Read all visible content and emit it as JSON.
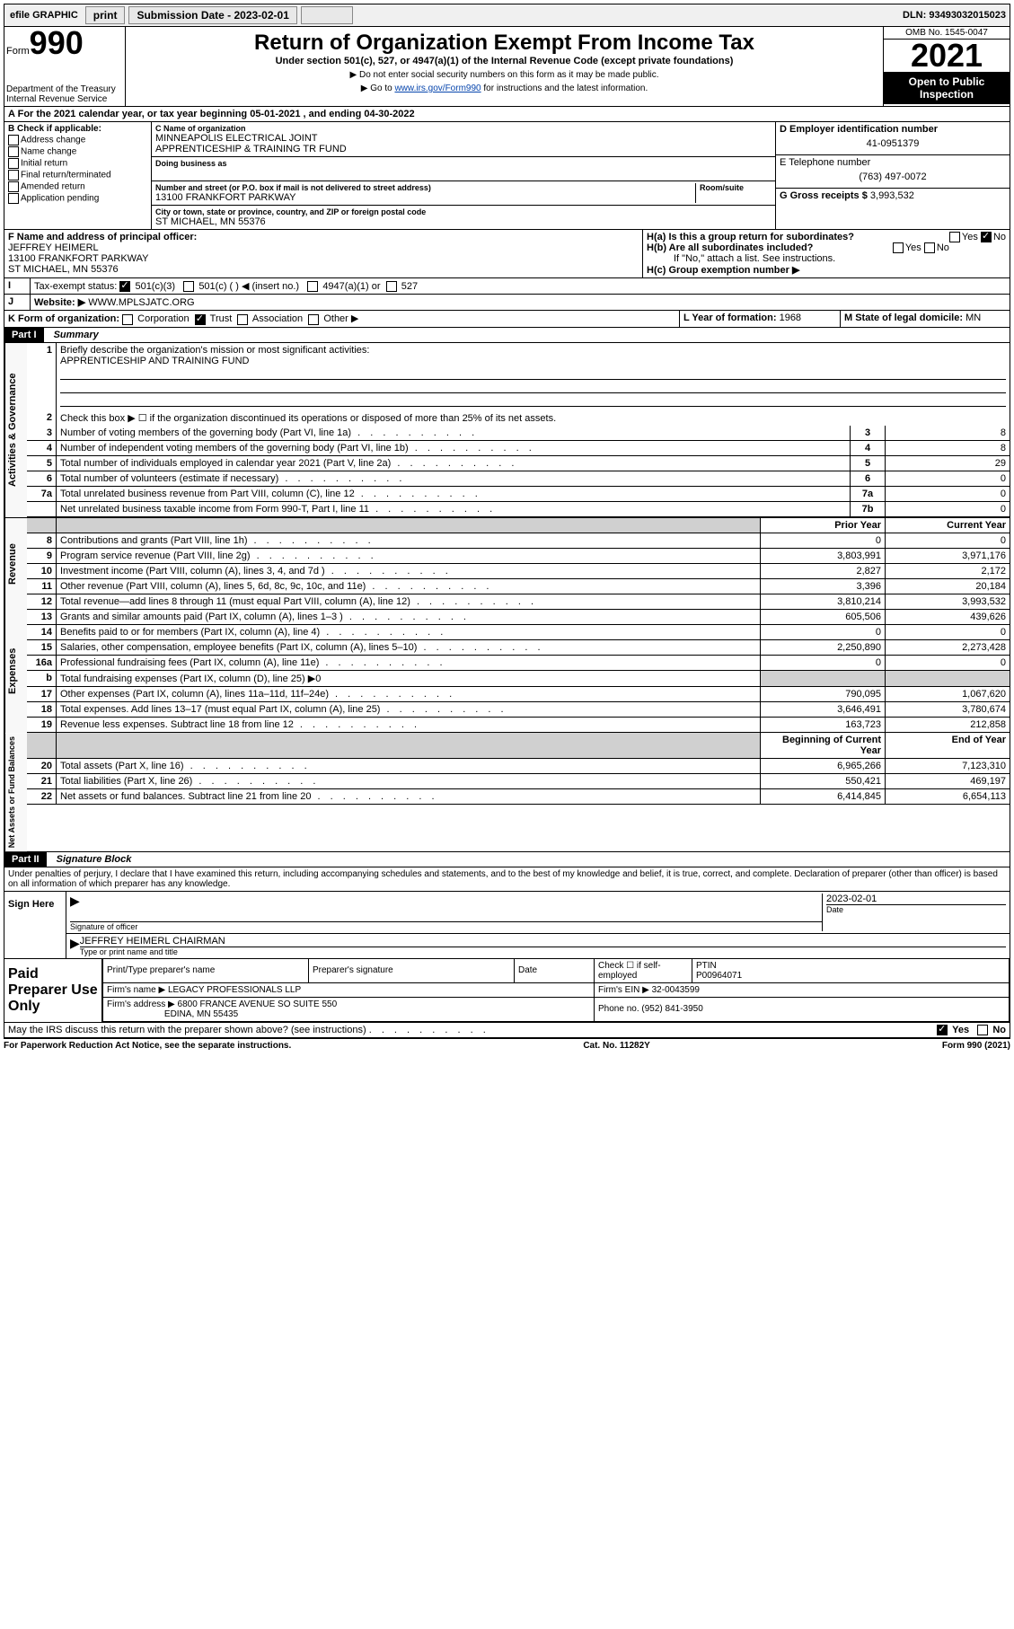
{
  "topbar": {
    "efile": "efile GRAPHIC",
    "print": "print",
    "sub_label": "Submission Date - 2023-02-01",
    "dln": "DLN: 93493032015023"
  },
  "header": {
    "form_word": "Form",
    "form_num": "990",
    "dept": "Department of the Treasury",
    "irs": "Internal Revenue Service",
    "title": "Return of Organization Exempt From Income Tax",
    "subtitle": "Under section 501(c), 527, or 4947(a)(1) of the Internal Revenue Code (except private foundations)",
    "warn1": "▶ Do not enter social security numbers on this form as it may be made public.",
    "warn2_pre": "▶ Go to ",
    "warn2_link": "www.irs.gov/Form990",
    "warn2_post": " for instructions and the latest information.",
    "omb": "OMB No. 1545-0047",
    "year": "2021",
    "inspection": "Open to Public Inspection"
  },
  "periodA": "For the 2021 calendar year, or tax year beginning 05-01-2021   , and ending 04-30-2022",
  "blockB": {
    "title": "B Check if applicable:",
    "items": [
      "Address change",
      "Name change",
      "Initial return",
      "Final return/terminated",
      "Amended return",
      "Application pending"
    ]
  },
  "blockC": {
    "name_label": "C Name of organization",
    "name1": "MINNEAPOLIS ELECTRICAL JOINT",
    "name2": "APPRENTICESHIP & TRAINING TR FUND",
    "dba": "Doing business as",
    "addr_label": "Number and street (or P.O. box if mail is not delivered to street address)",
    "room": "Room/suite",
    "street": "13100 FRANKFORT PARKWAY",
    "city_label": "City or town, state or province, country, and ZIP or foreign postal code",
    "city": "ST MICHAEL, MN  55376"
  },
  "blockD": {
    "label": "D Employer identification number",
    "val": "41-0951379"
  },
  "blockE": {
    "label": "E Telephone number",
    "val": "(763) 497-0072"
  },
  "blockG": {
    "label": "G Gross receipts $",
    "val": "3,993,532"
  },
  "blockF": {
    "label": "F Name and address of principal officer:",
    "name": "JEFFREY HEIMERL",
    "street": "13100 FRANKFORT PARKWAY",
    "city": "ST MICHAEL, MN  55376"
  },
  "blockH": {
    "ha": "H(a)  Is this a group return for subordinates?",
    "yes": "Yes",
    "no": "No",
    "hb": "H(b)  Are all subordinates included?",
    "hb_note": "If \"No,\" attach a list. See instructions.",
    "hc": "H(c)  Group exemption number ▶"
  },
  "taxExempt": {
    "label": "Tax-exempt status:",
    "opt1": "501(c)(3)",
    "opt2": "501(c) (   ) ◀ (insert no.)",
    "opt3": "4947(a)(1) or",
    "opt4": "527"
  },
  "website": {
    "label": "Website: ▶",
    "val": "WWW.MPLSJATC.ORG"
  },
  "blockK": {
    "label": "K Form of organization:",
    "opts": [
      "Corporation",
      "Trust",
      "Association",
      "Other ▶"
    ]
  },
  "blockL": {
    "label": "L Year of formation:",
    "val": "1968"
  },
  "blockM": {
    "label": "M State of legal domicile:",
    "val": "MN"
  },
  "part1": {
    "tag": "Part I",
    "title": "Summary"
  },
  "summary": {
    "q1": "Briefly describe the organization's mission or most significant activities:",
    "q1_ans": "APPRENTICESHIP AND TRAINING FUND",
    "q2": "Check this box ▶ ☐  if the organization discontinued its operations or disposed of more than 25% of its net assets.",
    "lines_gov": [
      {
        "n": "3",
        "d": "Number of voting members of the governing body (Part VI, line 1a)",
        "box": "3",
        "v": "8"
      },
      {
        "n": "4",
        "d": "Number of independent voting members of the governing body (Part VI, line 1b)",
        "box": "4",
        "v": "8"
      },
      {
        "n": "5",
        "d": "Total number of individuals employed in calendar year 2021 (Part V, line 2a)",
        "box": "5",
        "v": "29"
      },
      {
        "n": "6",
        "d": "Total number of volunteers (estimate if necessary)",
        "box": "6",
        "v": "0"
      },
      {
        "n": "7a",
        "d": "Total unrelated business revenue from Part VIII, column (C), line 12",
        "box": "7a",
        "v": "0"
      },
      {
        "n": "",
        "d": "Net unrelated business taxable income from Form 990-T, Part I, line 11",
        "box": "7b",
        "v": "0"
      }
    ],
    "col_prior": "Prior Year",
    "col_current": "Current Year",
    "col_begin": "Beginning of Current Year",
    "col_end": "End of Year",
    "revenue": [
      {
        "n": "8",
        "d": "Contributions and grants (Part VIII, line 1h)",
        "p": "0",
        "c": "0"
      },
      {
        "n": "9",
        "d": "Program service revenue (Part VIII, line 2g)",
        "p": "3,803,991",
        "c": "3,971,176"
      },
      {
        "n": "10",
        "d": "Investment income (Part VIII, column (A), lines 3, 4, and 7d )",
        "p": "2,827",
        "c": "2,172"
      },
      {
        "n": "11",
        "d": "Other revenue (Part VIII, column (A), lines 5, 6d, 8c, 9c, 10c, and 11e)",
        "p": "3,396",
        "c": "20,184"
      },
      {
        "n": "12",
        "d": "Total revenue—add lines 8 through 11 (must equal Part VIII, column (A), line 12)",
        "p": "3,810,214",
        "c": "3,993,532"
      }
    ],
    "expenses": [
      {
        "n": "13",
        "d": "Grants and similar amounts paid (Part IX, column (A), lines 1–3 )",
        "p": "605,506",
        "c": "439,626"
      },
      {
        "n": "14",
        "d": "Benefits paid to or for members (Part IX, column (A), line 4)",
        "p": "0",
        "c": "0"
      },
      {
        "n": "15",
        "d": "Salaries, other compensation, employee benefits (Part IX, column (A), lines 5–10)",
        "p": "2,250,890",
        "c": "2,273,428"
      },
      {
        "n": "16a",
        "d": "Professional fundraising fees (Part IX, column (A), line 11e)",
        "p": "0",
        "c": "0"
      },
      {
        "n": "b",
        "d": "Total fundraising expenses (Part IX, column (D), line 25) ▶0",
        "p": "",
        "c": "",
        "shade": true
      },
      {
        "n": "17",
        "d": "Other expenses (Part IX, column (A), lines 11a–11d, 11f–24e)",
        "p": "790,095",
        "c": "1,067,620"
      },
      {
        "n": "18",
        "d": "Total expenses. Add lines 13–17 (must equal Part IX, column (A), line 25)",
        "p": "3,646,491",
        "c": "3,780,674"
      },
      {
        "n": "19",
        "d": "Revenue less expenses. Subtract line 18 from line 12",
        "p": "163,723",
        "c": "212,858"
      }
    ],
    "netassets": [
      {
        "n": "20",
        "d": "Total assets (Part X, line 16)",
        "p": "6,965,266",
        "c": "7,123,310"
      },
      {
        "n": "21",
        "d": "Total liabilities (Part X, line 26)",
        "p": "550,421",
        "c": "469,197"
      },
      {
        "n": "22",
        "d": "Net assets or fund balances. Subtract line 21 from line 20",
        "p": "6,414,845",
        "c": "6,654,113"
      }
    ],
    "vert_gov": "Activities & Governance",
    "vert_rev": "Revenue",
    "vert_exp": "Expenses",
    "vert_net": "Net Assets or Fund Balances"
  },
  "part2": {
    "tag": "Part II",
    "title": "Signature Block"
  },
  "penalties": "Under penalties of perjury, I declare that I have examined this return, including accompanying schedules and statements, and to the best of my knowledge and belief, it is true, correct, and complete. Declaration of preparer (other than officer) is based on all information of which preparer has any knowledge.",
  "sign": {
    "here": "Sign Here",
    "sig_officer": "Signature of officer",
    "date": "Date",
    "date_val": "2023-02-01",
    "name": "JEFFREY HEIMERL CHAIRMAN",
    "name_label": "Type or print name and title"
  },
  "paid": {
    "label": "Paid Preparer Use Only",
    "h_name": "Print/Type preparer's name",
    "h_sig": "Preparer's signature",
    "h_date": "Date",
    "check": "Check ☐ if self-employed",
    "ptin_l": "PTIN",
    "ptin": "P00964071",
    "firm_name_l": "Firm's name    ▶",
    "firm_name": "LEGACY PROFESSIONALS LLP",
    "firm_ein_l": "Firm's EIN ▶",
    "firm_ein": "32-0043599",
    "firm_addr_l": "Firm's address ▶",
    "firm_addr1": "6800 FRANCE AVENUE SO SUITE 550",
    "firm_addr2": "EDINA, MN  55435",
    "phone_l": "Phone no.",
    "phone": "(952) 841-3950"
  },
  "discuss": "May the IRS discuss this return with the preparer shown above? (see instructions)",
  "footer": {
    "left": "For Paperwork Reduction Act Notice, see the separate instructions.",
    "mid": "Cat. No. 11282Y",
    "right": "Form 990 (2021)"
  }
}
